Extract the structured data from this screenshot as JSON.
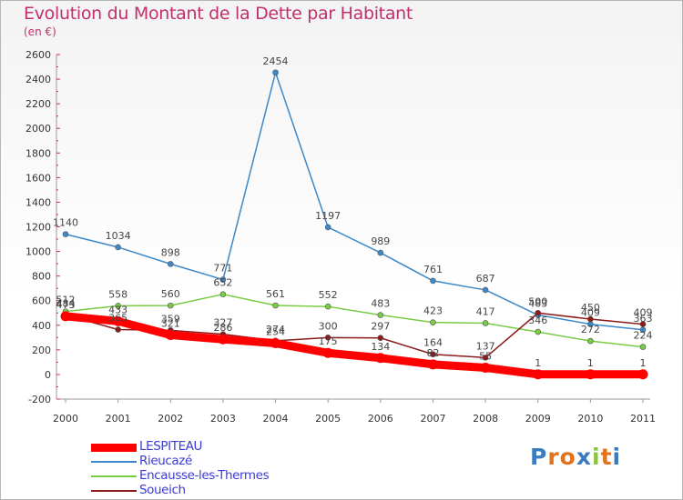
{
  "title": "Evolution du Montant de la Dette par Habitant",
  "unit": "(en €)",
  "logo_text": "Proxiti",
  "chart_data": {
    "type": "line",
    "x": [
      "2000",
      "2001",
      "2002",
      "2003",
      "2004",
      "2005",
      "2006",
      "2007",
      "2008",
      "2009",
      "2010",
      "2011"
    ],
    "ylim": [
      -200,
      2600
    ],
    "yticks": [
      -200,
      0,
      200,
      400,
      600,
      800,
      1000,
      1200,
      1400,
      1600,
      1800,
      2000,
      2200,
      2400,
      2600
    ],
    "grid": false,
    "legend_placement": "bottom-left",
    "series": [
      {
        "name": "LESPITEAU",
        "color": "#ff0000",
        "values": [
          473,
          433,
          321,
          286,
          254,
          175,
          134,
          82,
          55,
          1,
          1,
          1
        ]
      },
      {
        "name": "Rieucazé",
        "color": "#3d88c8",
        "values": [
          1140,
          1034,
          898,
          771,
          2454,
          1197,
          989,
          761,
          687,
          483,
          409,
          363
        ]
      },
      {
        "name": "Encausse-les-Thermes",
        "color": "#77cc44",
        "values": [
          512,
          558,
          560,
          652,
          561,
          552,
          483,
          423,
          417,
          346,
          272,
          224
        ]
      },
      {
        "name": "Soueich",
        "color": "#8b1a1a",
        "values": [
          484,
          365,
          359,
          327,
          274,
          300,
          297,
          164,
          137,
          500,
          450,
          409
        ]
      }
    ]
  }
}
